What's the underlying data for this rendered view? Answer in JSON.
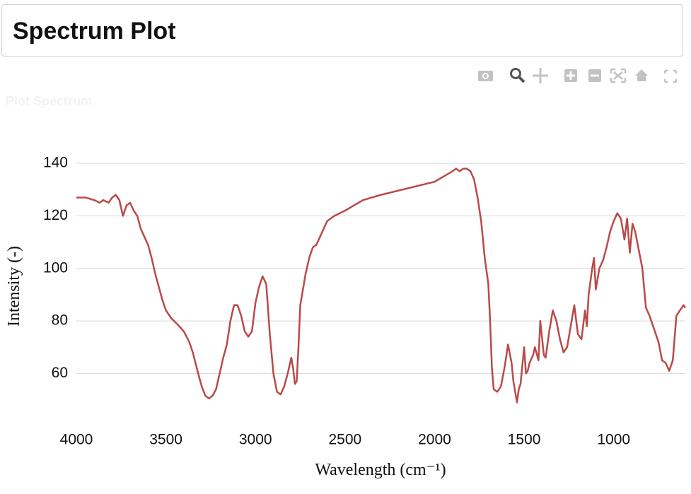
{
  "header": {
    "title": "Spectrum Plot"
  },
  "panel": {
    "label": "Plot Spectrum"
  },
  "chart_data": {
    "type": "line",
    "x_label": "Wavelength (cm⁻¹)",
    "y_label": "Intensity (-)",
    "color": "#b94a48",
    "xlim": [
      4000,
      600
    ],
    "ylim": [
      44.5,
      143
    ],
    "xticks": [
      4000,
      3500,
      3000,
      2500,
      2000,
      1500,
      1000
    ],
    "yticks": [
      60,
      80,
      100,
      120,
      140
    ],
    "grid": true,
    "x": [
      4000,
      3950,
      3900,
      3870,
      3850,
      3820,
      3800,
      3780,
      3760,
      3740,
      3720,
      3700,
      3680,
      3660,
      3640,
      3620,
      3600,
      3580,
      3560,
      3540,
      3520,
      3500,
      3470,
      3440,
      3400,
      3370,
      3350,
      3320,
      3300,
      3280,
      3260,
      3240,
      3220,
      3200,
      3180,
      3160,
      3140,
      3120,
      3100,
      3080,
      3060,
      3040,
      3020,
      3000,
      2980,
      2960,
      2940,
      2920,
      2900,
      2880,
      2860,
      2840,
      2820,
      2800,
      2790,
      2780,
      2770,
      2760,
      2750,
      2720,
      2700,
      2680,
      2660,
      2640,
      2600,
      2560,
      2500,
      2450,
      2400,
      2350,
      2300,
      2000,
      1900,
      1880,
      1860,
      1840,
      1820,
      1800,
      1780,
      1760,
      1740,
      1720,
      1700,
      1690,
      1680,
      1670,
      1650,
      1630,
      1610,
      1590,
      1570,
      1560,
      1550,
      1540,
      1530,
      1520,
      1500,
      1490,
      1480,
      1470,
      1450,
      1440,
      1420,
      1410,
      1390,
      1380,
      1360,
      1340,
      1320,
      1300,
      1280,
      1260,
      1240,
      1220,
      1200,
      1180,
      1160,
      1150,
      1140,
      1120,
      1110,
      1100,
      1080,
      1060,
      1040,
      1020,
      1000,
      980,
      960,
      940,
      925,
      910,
      895,
      880,
      860,
      840,
      820,
      800,
      780,
      750,
      730,
      710,
      690,
      670,
      650,
      630,
      610,
      600
    ],
    "values": [
      127,
      127,
      126,
      125,
      126,
      125,
      127,
      128,
      126,
      120,
      124,
      125,
      122,
      120,
      115,
      112,
      109,
      104,
      98,
      93,
      88,
      84,
      81,
      79,
      76,
      72,
      68,
      60,
      55,
      51.5,
      50.5,
      51.5,
      54,
      60,
      66,
      71,
      80,
      86,
      86,
      82,
      76,
      74,
      76,
      87,
      93,
      97,
      94,
      75,
      60,
      53,
      52,
      55,
      60,
      66,
      62,
      56,
      57,
      70,
      86,
      98,
      104,
      108,
      109,
      112,
      118,
      120,
      122,
      124,
      126,
      127,
      128,
      133,
      137,
      138,
      137,
      138,
      138,
      137,
      134,
      127,
      118,
      104,
      94,
      80,
      62,
      54,
      53,
      55,
      62,
      71,
      64,
      57,
      53,
      49,
      54,
      56,
      70,
      60,
      61,
      64,
      67,
      70,
      65,
      80,
      67,
      66,
      76,
      84,
      80,
      73,
      68,
      70,
      78,
      86,
      75,
      73,
      84,
      78,
      90,
      100,
      104,
      92,
      100,
      103,
      108,
      114,
      118,
      121,
      119,
      111,
      119,
      106,
      117,
      114,
      107,
      100,
      85,
      82,
      78,
      72,
      65,
      64,
      61,
      65,
      82,
      84,
      86,
      85
    ]
  }
}
